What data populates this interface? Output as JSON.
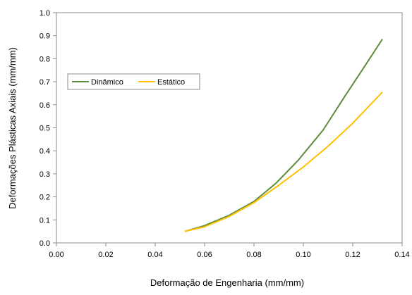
{
  "chart_data": {
    "type": "line",
    "title": "",
    "xlabel": "Deformação de Engenharia (mm/mm)",
    "ylabel": "Deformações Plásticas Axiais (mm/mm)",
    "xlim": [
      0.0,
      0.14
    ],
    "ylim": [
      0.0,
      1.0
    ],
    "x_ticks": [
      "0.00",
      "0.02",
      "0.04",
      "0.06",
      "0.08",
      "0.10",
      "0.12",
      "0.14"
    ],
    "y_ticks": [
      "0.0",
      "0.1",
      "0.2",
      "0.3",
      "0.4",
      "0.5",
      "0.6",
      "0.7",
      "0.8",
      "0.9",
      "1.0"
    ],
    "grid": false,
    "legend_position": "left",
    "series": [
      {
        "name": "Dinâmico",
        "color": "#5B8C3A",
        "x": [
          0.052,
          0.06,
          0.07,
          0.08,
          0.089,
          0.098,
          0.108,
          0.117,
          0.125,
          0.132
        ],
        "y": [
          0.05,
          0.075,
          0.12,
          0.18,
          0.26,
          0.36,
          0.49,
          0.64,
          0.77,
          0.885
        ]
      },
      {
        "name": "Estático",
        "color": "#FFC000",
        "x": [
          0.052,
          0.06,
          0.07,
          0.08,
          0.09,
          0.1,
          0.11,
          0.12,
          0.132
        ],
        "y": [
          0.05,
          0.07,
          0.115,
          0.175,
          0.25,
          0.33,
          0.42,
          0.52,
          0.655
        ]
      }
    ]
  }
}
